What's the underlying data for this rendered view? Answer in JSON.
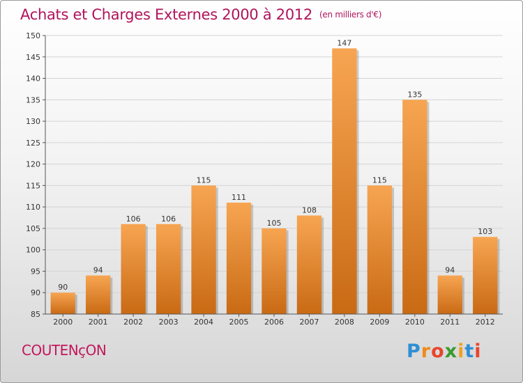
{
  "chart_data": {
    "type": "bar",
    "title": "Achats et Charges Externes 2000 à 2012",
    "subtitle": "(en milliers d'€)",
    "categories": [
      "2000",
      "2001",
      "2002",
      "2003",
      "2004",
      "2005",
      "2006",
      "2007",
      "2008",
      "2009",
      "2010",
      "2011",
      "2012"
    ],
    "values": [
      90,
      94,
      106,
      106,
      115,
      111,
      105,
      108,
      147,
      115,
      135,
      94,
      103
    ],
    "ylim": [
      85,
      150
    ],
    "yticks": [
      85,
      90,
      95,
      100,
      105,
      110,
      115,
      120,
      125,
      130,
      135,
      140,
      145,
      150
    ],
    "xlabel": "",
    "ylabel": "",
    "grid": true,
    "bar_color": "#f0963f"
  },
  "footer": {
    "city": "COUTENçON",
    "logo_letters": [
      "P",
      "r",
      "o",
      "x",
      "i",
      "t",
      "i"
    ],
    "logo_colors": [
      "#2f8fd5",
      "#f08a1c",
      "#e8452c",
      "#3a9a2f",
      "#f0a020",
      "#2f8fd5",
      "#e8452c"
    ]
  }
}
